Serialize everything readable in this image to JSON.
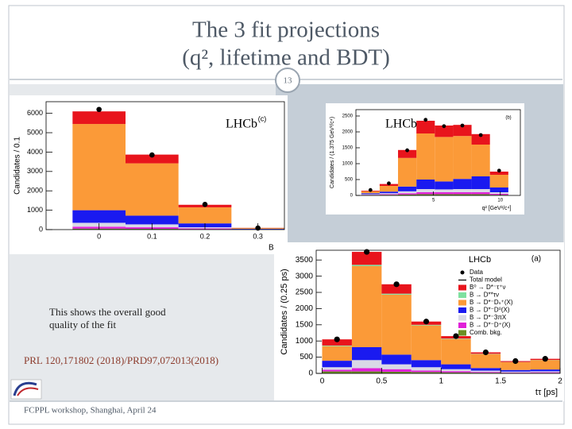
{
  "slide": {
    "title_lines": [
      "The 3 fit projections",
      "(q², lifetime and BDT)"
    ],
    "page_number": "13",
    "body_lines": [
      "This shows the overall good",
      "quality of the fit"
    ],
    "reference": "PRL 120,171802 (2018)/PRD97,072013(2018)",
    "footer": "FCPPL workshop, Shanghai, April 24"
  },
  "figures": [
    {
      "type": "histogram",
      "experiment_label": "LHCb",
      "panel_label": "(c)",
      "xlabel": "BDT",
      "ylabel": "Candidates / 0.1",
      "xlim": [
        -0.1,
        0.35
      ],
      "ylim": [
        0,
        6600
      ],
      "xticks": [
        0,
        0.1,
        0.2,
        0.3
      ],
      "yticks": [
        0,
        1000,
        2000,
        3000,
        4000,
        5000,
        6000
      ],
      "bins": [
        -0.05,
        0.05,
        0.15,
        0.25,
        0.35
      ],
      "series": [
        {
          "color": "#e8141c",
          "values": [
            650,
            450,
            130,
            10
          ]
        },
        {
          "color": "#fb9a38",
          "values": [
            4450,
            2700,
            830,
            40
          ]
        },
        {
          "color": "#1a1af0",
          "values": [
            650,
            450,
            200,
            20
          ]
        },
        {
          "color": "#d9d9e6",
          "values": [
            200,
            150,
            60,
            10
          ]
        },
        {
          "color": "#e020d8",
          "values": [
            100,
            80,
            40,
            5
          ]
        },
        {
          "color": "#6b8e23",
          "values": [
            50,
            40,
            20,
            5
          ]
        }
      ],
      "data": {
        "color": "#000000",
        "values": [
          6200,
          3850,
          1300,
          80
        ]
      }
    },
    {
      "type": "histogram",
      "experiment_label": "LHCb",
      "panel_label": "(b)",
      "xlabel": "q² [GeV²/c⁴]",
      "ylabel": "Candidates / (1.375 GeV²/c⁴)",
      "xlim": [
        -0.8,
        11.5
      ],
      "ylim": [
        0,
        2700
      ],
      "xticks": [
        5,
        10
      ],
      "yticks": [
        0,
        500,
        1000,
        1500,
        2000,
        2500
      ],
      "bins": [
        -0.4,
        0.975,
        2.35,
        3.725,
        5.1,
        6.475,
        7.85,
        9.225,
        10.6
      ],
      "series": [
        {
          "color": "#e8141c",
          "values": [
            20,
            60,
            250,
            400,
            360,
            350,
            330,
            100
          ]
        },
        {
          "color": "#fb9a38",
          "values": [
            60,
            180,
            900,
            1450,
            1400,
            1350,
            1000,
            400
          ]
        },
        {
          "color": "#1a1af0",
          "values": [
            30,
            50,
            150,
            300,
            250,
            320,
            400,
            150
          ]
        },
        {
          "color": "#d9d9e6",
          "values": [
            20,
            30,
            60,
            100,
            90,
            100,
            100,
            50
          ]
        },
        {
          "color": "#e020d8",
          "values": [
            10,
            20,
            40,
            60,
            60,
            60,
            60,
            30
          ]
        },
        {
          "color": "#6b8e23",
          "values": [
            10,
            20,
            30,
            40,
            40,
            40,
            40,
            20
          ]
        }
      ],
      "data": {
        "color": "#000000",
        "values": [
          170,
          380,
          1420,
          2380,
          2180,
          2200,
          1900,
          780
        ]
      }
    },
    {
      "type": "histogram",
      "experiment_label": "LHCb",
      "panel_label": "(a)",
      "xlabel": "tτ [ps]",
      "ylabel": "Candidates / (0.25 ps)",
      "xlim": [
        -0.05,
        2.0
      ],
      "ylim": [
        0,
        3800
      ],
      "xticks": [
        0,
        0.5,
        1,
        1.5,
        2
      ],
      "yticks": [
        0,
        500,
        1000,
        1500,
        2000,
        2500,
        3000,
        3500
      ],
      "bins": [
        0,
        0.25,
        0.5,
        0.75,
        1,
        1.25,
        1.5,
        1.75,
        2
      ],
      "series": [
        {
          "name": "B⁰ → D*⁻τ⁺ν",
          "color": "#e8141c",
          "values": [
            190,
            400,
            290,
            100,
            75,
            45,
            30,
            35
          ]
        },
        {
          "name": "B → D**τν",
          "color": "#7fe0a0",
          "values": [
            20,
            40,
            30,
            20,
            15,
            10,
            5,
            5
          ]
        },
        {
          "name": "B → D*⁻Dₛ⁺(X)",
          "color": "#fb9a38",
          "values": [
            450,
            2500,
            1850,
            1070,
            780,
            430,
            240,
            290
          ]
        },
        {
          "name": "B → D*⁻D⁰(X)",
          "color": "#1a1af0",
          "values": [
            200,
            400,
            300,
            220,
            150,
            80,
            50,
            55
          ]
        },
        {
          "name": "B → D*⁻3πX",
          "color": "#d9d9e6",
          "values": [
            80,
            250,
            150,
            100,
            60,
            40,
            25,
            30
          ]
        },
        {
          "name": "B → D*⁻D⁺(X)",
          "color": "#e020d8",
          "values": [
            50,
            100,
            80,
            50,
            40,
            25,
            15,
            20
          ]
        },
        {
          "name": "Comb. bkg.",
          "color": "#6b8e23",
          "values": [
            60,
            60,
            50,
            40,
            30,
            20,
            15,
            15
          ]
        }
      ],
      "data": {
        "name": "Data",
        "color": "#000000",
        "values": [
          1050,
          3750,
          2750,
          1600,
          1150,
          650,
          380,
          450
        ]
      },
      "total_model": {
        "name": "Total model",
        "color": "#000000"
      }
    }
  ]
}
